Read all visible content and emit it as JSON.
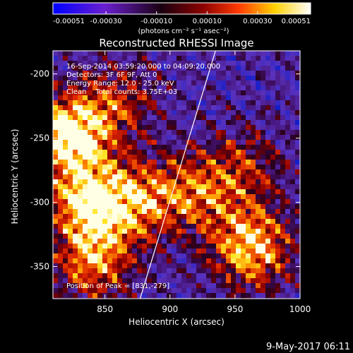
{
  "colorbar": {
    "tick_labels": [
      "-0.00051",
      "-0.00030",
      "-0.00010",
      "0.00010",
      "0.00030",
      "0.00051"
    ],
    "tick_values": [
      -0.00051,
      -0.0003,
      -0.0001,
      0.0001,
      0.0003,
      0.00051
    ],
    "range": [
      -0.00051,
      0.00051
    ],
    "unit_label": "(photons cm⁻² s⁻¹ asec⁻²)",
    "colors": [
      "#0000ff",
      "#6a1fd0",
      "#1a0010",
      "#8a0000",
      "#ff3a00",
      "#ffd000",
      "#ffffff"
    ]
  },
  "chart_data": {
    "type": "heatmap",
    "title": "Reconstructed RHESSI Image",
    "xlabel": "Heliocentric X (arcsec)",
    "ylabel": "Heliocentric Y (arcsec)",
    "xlim": [
      810,
      1000
    ],
    "ylim": [
      -375,
      -182
    ],
    "x_ticks": [
      850,
      900,
      950,
      1000
    ],
    "x_tick_labels": [
      "850",
      "900",
      "950",
      "1000"
    ],
    "y_ticks": [
      -200,
      -250,
      -300,
      -350
    ],
    "y_tick_labels": [
      "-200",
      "-250",
      "-300",
      "-350"
    ],
    "annotations": [
      "16-Sep-2014 03:59:20.000 to 04:09:20.000",
      "Detectors: 3F 6F 9F, Att 0",
      "Energy Range: 12.0 - 25.0 keV",
      "Clean    Total counts: 3.75E+03"
    ],
    "peak_label": "Position of Peak = [831,-279]",
    "peak": [
      831,
      -279
    ],
    "limb_line": {
      "x": [
        877,
        935
      ],
      "y": [
        -375,
        -182
      ]
    },
    "bright_regions": [
      {
        "x": 822,
        "y": -248,
        "level": 1.0
      },
      {
        "x": 838,
        "y": -300,
        "level": 0.85
      },
      {
        "x": 962,
        "y": -335,
        "level": 0.85
      },
      {
        "x": 880,
        "y": -298,
        "level": 0.6
      },
      {
        "x": 842,
        "y": -346,
        "level": 0.65
      },
      {
        "x": 922,
        "y": -292,
        "level": 0.5
      },
      {
        "x": 860,
        "y": -220,
        "level": 0.45
      },
      {
        "x": 958,
        "y": -272,
        "level": 0.4
      }
    ]
  },
  "footer": {
    "date": "9-May-2017 06:11"
  }
}
